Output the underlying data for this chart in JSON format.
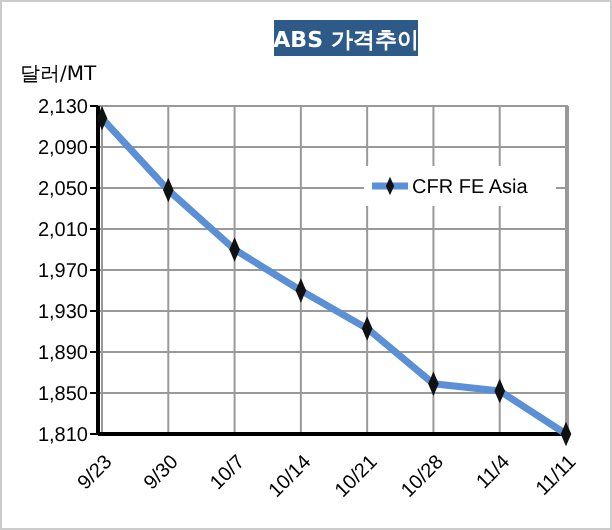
{
  "chart_data": {
    "type": "line",
    "title": "ABS 가격추이",
    "ylabel": "달러/MT",
    "categories": [
      "9/23",
      "9/30",
      "10/7",
      "10/14",
      "10/21",
      "10/28",
      "11/4",
      "11/11"
    ],
    "series": [
      {
        "name": "CFR FE Asia",
        "color": "#5b8fd6",
        "values": [
          2118,
          2048,
          1990,
          1950,
          1913,
          1859,
          1852,
          1810
        ]
      }
    ],
    "ylim": [
      1810,
      2130
    ],
    "yticks": [
      {
        "value": 1810,
        "label": "1,810"
      },
      {
        "value": 1850,
        "label": "1,850"
      },
      {
        "value": 1890,
        "label": "1,890"
      },
      {
        "value": 1930,
        "label": "1,930"
      },
      {
        "value": 1970,
        "label": "1,970"
      },
      {
        "value": 2010,
        "label": "2,010"
      },
      {
        "value": 2050,
        "label": "2,050"
      },
      {
        "value": 2090,
        "label": "2,090"
      },
      {
        "value": 2130,
        "label": "2,130"
      }
    ],
    "grid": true,
    "legend": "right",
    "marker": "diamond",
    "line_style": "solid"
  }
}
